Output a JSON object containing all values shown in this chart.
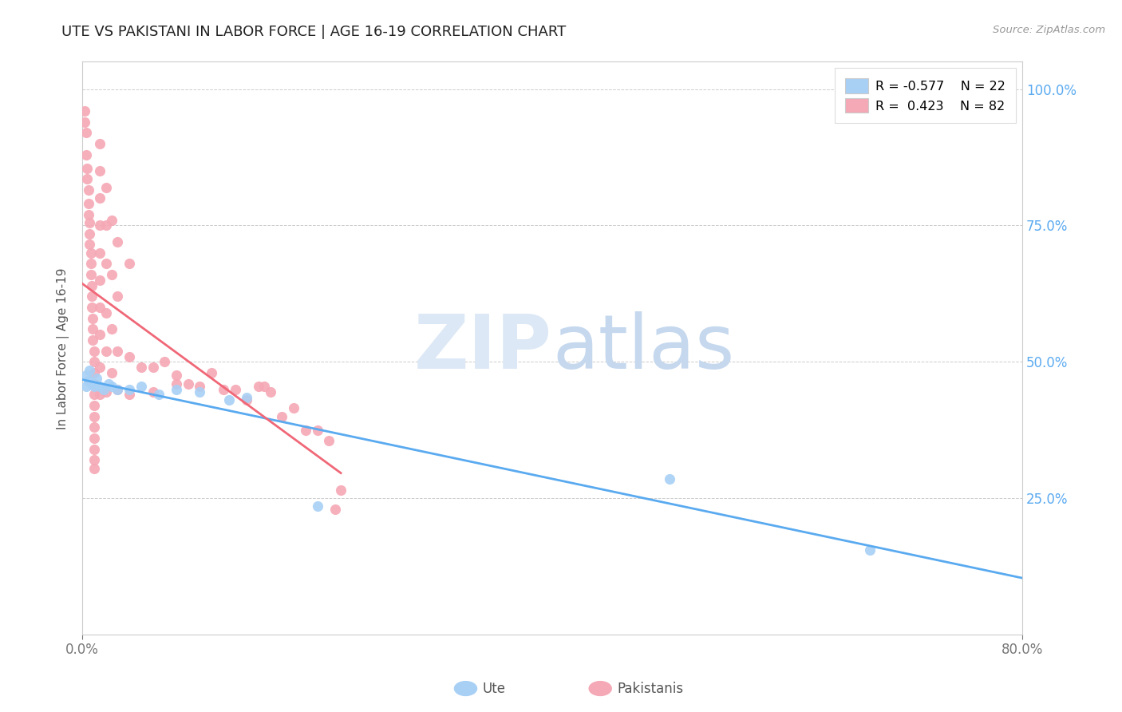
{
  "title": "UTE VS PAKISTANI IN LABOR FORCE | AGE 16-19 CORRELATION CHART",
  "source_text": "Source: ZipAtlas.com",
  "ylabel": "In Labor Force | Age 16-19",
  "watermark_zip": "ZIP",
  "watermark_atlas": "atlas",
  "ute_color": "#a8d0f5",
  "pak_color": "#f5a8b5",
  "ute_line_color": "#5aaaf0",
  "pak_line_color": "#f06878",
  "ute_legend_color": "#a8d0f5",
  "pak_legend_color": "#f5a8b5",
  "xlim": [
    0.0,
    0.8
  ],
  "ylim": [
    0.0,
    1.05
  ],
  "xtick_labels": [
    "0.0%",
    "80.0%"
  ],
  "ytick_labels": [
    "25.0%",
    "50.0%",
    "75.0%",
    "100.0%"
  ],
  "ytick_values": [
    0.25,
    0.5,
    0.75,
    1.0
  ],
  "background_color": "#ffffff",
  "grid_color": "#cccccc",
  "title_fontsize": 13,
  "tick_fontsize": 12,
  "ytick_color": "#5aaaf0",
  "xtick_color": "#777777",
  "ylabel_color": "#555555",
  "ute_points": [
    [
      0.003,
      0.475
    ],
    [
      0.003,
      0.455
    ],
    [
      0.005,
      0.465
    ],
    [
      0.006,
      0.485
    ],
    [
      0.008,
      0.46
    ],
    [
      0.01,
      0.455
    ],
    [
      0.012,
      0.47
    ],
    [
      0.015,
      0.455
    ],
    [
      0.018,
      0.45
    ],
    [
      0.022,
      0.46
    ],
    [
      0.025,
      0.455
    ],
    [
      0.03,
      0.45
    ],
    [
      0.04,
      0.45
    ],
    [
      0.05,
      0.455
    ],
    [
      0.065,
      0.44
    ],
    [
      0.08,
      0.45
    ],
    [
      0.1,
      0.445
    ],
    [
      0.125,
      0.43
    ],
    [
      0.14,
      0.435
    ],
    [
      0.2,
      0.235
    ],
    [
      0.5,
      0.285
    ],
    [
      0.67,
      0.155
    ]
  ],
  "pak_points": [
    [
      0.002,
      0.96
    ],
    [
      0.002,
      0.94
    ],
    [
      0.003,
      0.92
    ],
    [
      0.003,
      0.88
    ],
    [
      0.004,
      0.855
    ],
    [
      0.004,
      0.835
    ],
    [
      0.005,
      0.815
    ],
    [
      0.005,
      0.79
    ],
    [
      0.005,
      0.77
    ],
    [
      0.006,
      0.755
    ],
    [
      0.006,
      0.735
    ],
    [
      0.006,
      0.715
    ],
    [
      0.007,
      0.7
    ],
    [
      0.007,
      0.68
    ],
    [
      0.007,
      0.66
    ],
    [
      0.008,
      0.64
    ],
    [
      0.008,
      0.62
    ],
    [
      0.008,
      0.6
    ],
    [
      0.009,
      0.58
    ],
    [
      0.009,
      0.56
    ],
    [
      0.009,
      0.54
    ],
    [
      0.01,
      0.52
    ],
    [
      0.01,
      0.5
    ],
    [
      0.01,
      0.48
    ],
    [
      0.01,
      0.46
    ],
    [
      0.01,
      0.44
    ],
    [
      0.01,
      0.42
    ],
    [
      0.01,
      0.4
    ],
    [
      0.01,
      0.38
    ],
    [
      0.01,
      0.36
    ],
    [
      0.01,
      0.34
    ],
    [
      0.01,
      0.32
    ],
    [
      0.01,
      0.305
    ],
    [
      0.015,
      0.9
    ],
    [
      0.015,
      0.85
    ],
    [
      0.015,
      0.8
    ],
    [
      0.015,
      0.75
    ],
    [
      0.015,
      0.7
    ],
    [
      0.015,
      0.65
    ],
    [
      0.015,
      0.6
    ],
    [
      0.015,
      0.55
    ],
    [
      0.015,
      0.49
    ],
    [
      0.015,
      0.44
    ],
    [
      0.02,
      0.82
    ],
    [
      0.02,
      0.75
    ],
    [
      0.02,
      0.68
    ],
    [
      0.02,
      0.59
    ],
    [
      0.02,
      0.52
    ],
    [
      0.02,
      0.445
    ],
    [
      0.025,
      0.76
    ],
    [
      0.025,
      0.66
    ],
    [
      0.025,
      0.56
    ],
    [
      0.025,
      0.48
    ],
    [
      0.03,
      0.72
    ],
    [
      0.03,
      0.62
    ],
    [
      0.03,
      0.52
    ],
    [
      0.03,
      0.45
    ],
    [
      0.04,
      0.68
    ],
    [
      0.04,
      0.51
    ],
    [
      0.04,
      0.44
    ],
    [
      0.05,
      0.49
    ],
    [
      0.06,
      0.49
    ],
    [
      0.06,
      0.445
    ],
    [
      0.07,
      0.5
    ],
    [
      0.08,
      0.46
    ],
    [
      0.08,
      0.475
    ],
    [
      0.09,
      0.46
    ],
    [
      0.1,
      0.455
    ],
    [
      0.11,
      0.48
    ],
    [
      0.12,
      0.45
    ],
    [
      0.13,
      0.45
    ],
    [
      0.14,
      0.43
    ],
    [
      0.15,
      0.455
    ],
    [
      0.155,
      0.455
    ],
    [
      0.16,
      0.445
    ],
    [
      0.17,
      0.4
    ],
    [
      0.18,
      0.415
    ],
    [
      0.19,
      0.375
    ],
    [
      0.2,
      0.375
    ],
    [
      0.21,
      0.355
    ],
    [
      0.215,
      0.23
    ],
    [
      0.22,
      0.265
    ]
  ]
}
